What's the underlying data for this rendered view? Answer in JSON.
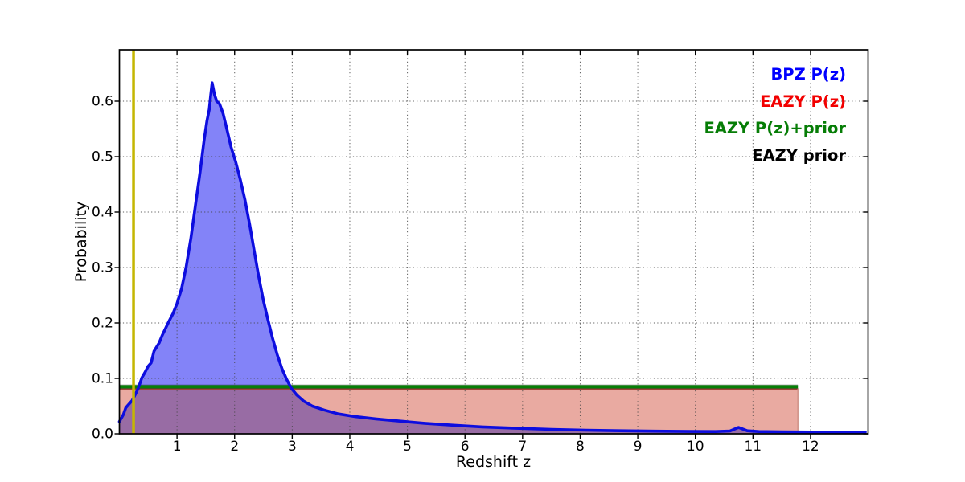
{
  "figure": {
    "background": "#ffffff"
  },
  "axes": {
    "xlabel": "Redshift z",
    "ylabel": "Probability",
    "x_tick_labels": [
      "1",
      "2",
      "3",
      "4",
      "5",
      "6",
      "7",
      "8",
      "9",
      "10",
      "11",
      "12"
    ],
    "y_tick_labels": [
      "0.0",
      "0.1",
      "0.2",
      "0.3",
      "0.4",
      "0.5",
      "0.6"
    ],
    "x_tick_values": [
      1,
      2,
      3,
      4,
      5,
      6,
      7,
      8,
      9,
      10,
      11,
      12
    ],
    "y_tick_values": [
      0.0,
      0.1,
      0.2,
      0.3,
      0.4,
      0.5,
      0.6
    ],
    "xlim": [
      0,
      12.95
    ],
    "ylim": [
      0,
      0.693
    ],
    "grid": "dotted"
  },
  "legend": {
    "position": "upper right",
    "items": [
      {
        "label": "BPZ P(z)",
        "color": "#0000ff"
      },
      {
        "label": "EAZY P(z)",
        "color": "#f20000"
      },
      {
        "label": "EAZY P(z)+prior",
        "color": "#067d06"
      },
      {
        "label": "EAZY prior",
        "color": "#000000"
      }
    ]
  },
  "colors": {
    "bpz_line": "#0d0ddf",
    "bpz_fill": "#8383f8",
    "eazy_fill": "#e9aaa1",
    "overlap_fill": "#986ca4",
    "eazy_edge": "#a8443a",
    "prior_line": "#077f07",
    "marker_line": "#c4b602",
    "grid_line": "#444444",
    "spine": "#000000"
  },
  "chart_data": {
    "type": "line",
    "title": "",
    "xlabel": "Redshift z",
    "ylabel": "Probability",
    "xlim": [
      0,
      12.95
    ],
    "ylim": [
      0,
      0.693
    ],
    "grid": true,
    "legend_position": "upper right",
    "series": [
      {
        "name": "BPZ P(z)",
        "style": "filled curve",
        "color": "#0000ff",
        "peak": {
          "z": 1.6,
          "p": 0.633
        },
        "points": [
          [
            0.0,
            0.022
          ],
          [
            0.07,
            0.035
          ],
          [
            0.11,
            0.047
          ],
          [
            0.16,
            0.053
          ],
          [
            0.22,
            0.06
          ],
          [
            0.28,
            0.072
          ],
          [
            0.33,
            0.083
          ],
          [
            0.39,
            0.101
          ],
          [
            0.45,
            0.112
          ],
          [
            0.5,
            0.122
          ],
          [
            0.55,
            0.128
          ],
          [
            0.6,
            0.149
          ],
          [
            0.69,
            0.164
          ],
          [
            0.74,
            0.177
          ],
          [
            0.8,
            0.19
          ],
          [
            0.86,
            0.203
          ],
          [
            0.93,
            0.217
          ],
          [
            1.0,
            0.235
          ],
          [
            1.08,
            0.262
          ],
          [
            1.16,
            0.302
          ],
          [
            1.24,
            0.352
          ],
          [
            1.32,
            0.412
          ],
          [
            1.4,
            0.472
          ],
          [
            1.47,
            0.53
          ],
          [
            1.52,
            0.565
          ],
          [
            1.56,
            0.585
          ],
          [
            1.585,
            0.61
          ],
          [
            1.61,
            0.633
          ],
          [
            1.65,
            0.612
          ],
          [
            1.69,
            0.6
          ],
          [
            1.74,
            0.595
          ],
          [
            1.8,
            0.578
          ],
          [
            1.87,
            0.548
          ],
          [
            1.94,
            0.517
          ],
          [
            2.02,
            0.49
          ],
          [
            2.1,
            0.458
          ],
          [
            2.18,
            0.422
          ],
          [
            2.26,
            0.378
          ],
          [
            2.34,
            0.33
          ],
          [
            2.42,
            0.283
          ],
          [
            2.5,
            0.24
          ],
          [
            2.58,
            0.205
          ],
          [
            2.66,
            0.172
          ],
          [
            2.74,
            0.143
          ],
          [
            2.82,
            0.118
          ],
          [
            2.9,
            0.099
          ],
          [
            2.98,
            0.083
          ],
          [
            3.08,
            0.07
          ],
          [
            3.2,
            0.059
          ],
          [
            3.35,
            0.05
          ],
          [
            3.55,
            0.043
          ],
          [
            3.8,
            0.036
          ],
          [
            4.1,
            0.031
          ],
          [
            4.45,
            0.027
          ],
          [
            4.85,
            0.023
          ],
          [
            5.3,
            0.019
          ],
          [
            5.8,
            0.0155
          ],
          [
            6.3,
            0.0125
          ],
          [
            6.9,
            0.01
          ],
          [
            7.5,
            0.008
          ],
          [
            8.1,
            0.0065
          ],
          [
            8.7,
            0.0055
          ],
          [
            9.3,
            0.0048
          ],
          [
            9.9,
            0.0042
          ],
          [
            10.35,
            0.004
          ],
          [
            10.6,
            0.005
          ],
          [
            10.75,
            0.0115
          ],
          [
            10.9,
            0.0055
          ],
          [
            11.1,
            0.004
          ],
          [
            11.5,
            0.0035
          ],
          [
            12.0,
            0.0032
          ],
          [
            12.5,
            0.003
          ],
          [
            12.95,
            0.003
          ]
        ]
      },
      {
        "name": "EAZY P(z)",
        "style": "flat filled region",
        "color": "#f20000",
        "x_range": [
          0,
          11.78
        ],
        "value": 0.082
      },
      {
        "name": "EAZY P(z)+prior",
        "style": "flat line",
        "color": "#067d06",
        "x_range": [
          0,
          11.78
        ],
        "value": 0.085
      },
      {
        "name": "EAZY prior",
        "style": "flat line (coincides with EAZY P(z)+prior)",
        "color": "#000000",
        "x_range": [
          0,
          11.78
        ],
        "value": 0.085
      },
      {
        "name": "redshift marker",
        "style": "vertical line",
        "color": "#c4b602",
        "x": 0.245
      }
    ]
  }
}
